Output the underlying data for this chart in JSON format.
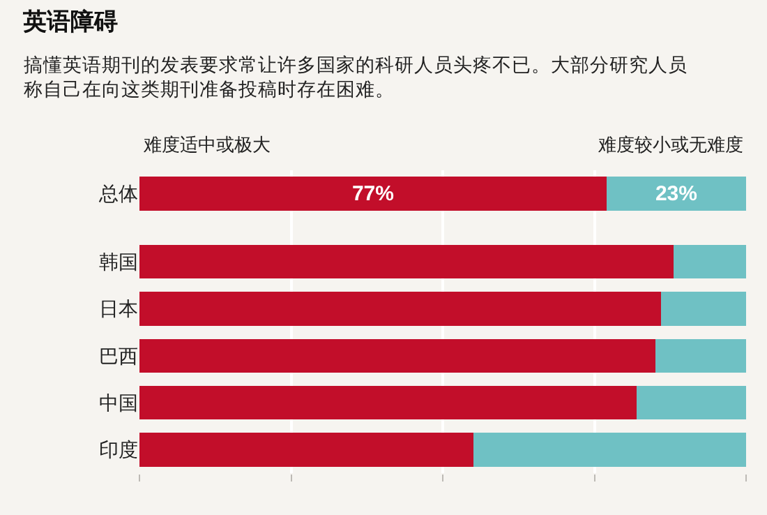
{
  "chart_data": {
    "type": "bar",
    "title": "英语障碍",
    "subtitle": "搞懂英语期刊的发表要求常让许多国家的科研人员头疼不已。大部分研究人员称自己在向这类期刊准备投稿时存在困难。",
    "orientation": "horizontal",
    "stacked": true,
    "categories": [
      "总体",
      "韩国",
      "日本",
      "巴西",
      "中国",
      "印度"
    ],
    "series": [
      {
        "name": "难度适中或极大",
        "color": "#c20e2a",
        "values": [
          77,
          88,
          86,
          85,
          82,
          55
        ],
        "value_labels": [
          "77%",
          null,
          null,
          null,
          null,
          null
        ]
      },
      {
        "name": "难度较小或无难度",
        "color": "#6fc1c4",
        "values": [
          23,
          12,
          14,
          15,
          18,
          45
        ],
        "value_labels": [
          "23%",
          null,
          null,
          null,
          null,
          null
        ]
      }
    ],
    "xlim": [
      0,
      100
    ],
    "xticks": [
      {
        "value": 0,
        "label": null
      },
      {
        "value": 25,
        "label": null
      },
      {
        "value": 50,
        "label": null
      },
      {
        "value": 75,
        "label": null
      },
      {
        "value": 100,
        "label": null
      }
    ],
    "tick_labels": "y",
    "grid": "x",
    "legend": "top"
  }
}
